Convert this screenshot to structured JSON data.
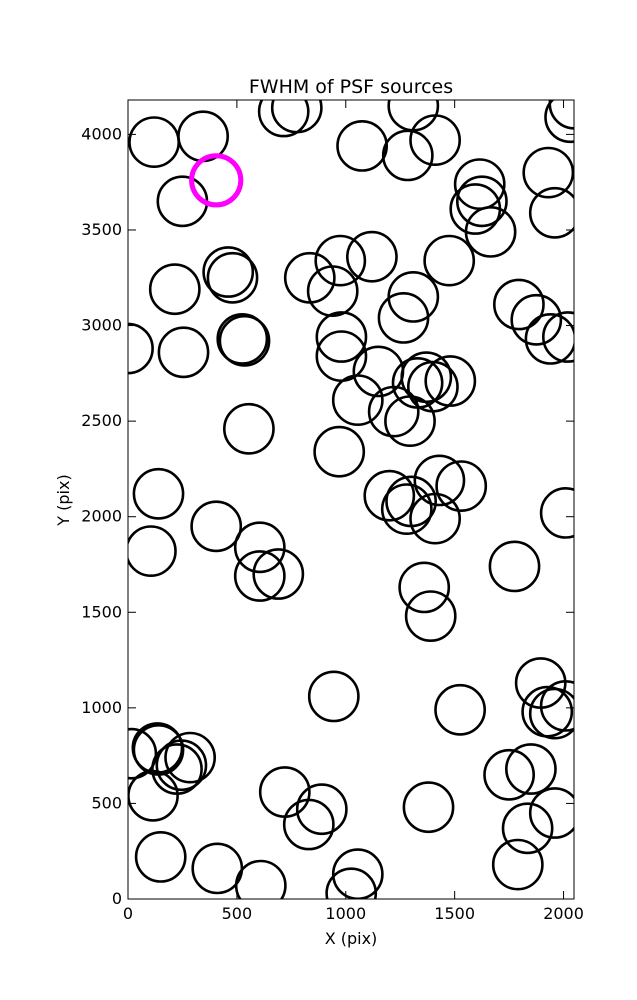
{
  "chart_data": {
    "type": "scatter",
    "title": "FWHM of PSF sources",
    "xlabel": "X (pix)",
    "ylabel": "Y (pix)",
    "xlim": [
      0,
      2048
    ],
    "ylim": [
      0,
      4180
    ],
    "grid": false,
    "marker": "open-circle",
    "circle_radius_data": 113,
    "marker_color": "#000000",
    "highlight_color": "#ff00ff",
    "x_ticks": [
      {
        "value": 0,
        "label": "0"
      },
      {
        "value": 500,
        "label": "500"
      },
      {
        "value": 1000,
        "label": "1000"
      },
      {
        "value": 1500,
        "label": "1500"
      },
      {
        "value": 2000,
        "label": "2000"
      }
    ],
    "y_ticks": [
      {
        "value": 0,
        "label": "0"
      },
      {
        "value": 500,
        "label": "500"
      },
      {
        "value": 1000,
        "label": "1000"
      },
      {
        "value": 1500,
        "label": "1500"
      },
      {
        "value": 2000,
        "label": "2000"
      },
      {
        "value": 2500,
        "label": "2500"
      },
      {
        "value": 3000,
        "label": "3000"
      },
      {
        "value": 3500,
        "label": "3500"
      },
      {
        "value": 4000,
        "label": "4000"
      }
    ],
    "series": [
      {
        "points": [
          [
            120,
            3960
          ],
          [
            345,
            3990
          ],
          [
            715,
            4120
          ],
          [
            775,
            4140
          ],
          [
            1075,
            3940
          ],
          [
            1285,
            3890
          ],
          [
            1310,
            4150
          ],
          [
            1410,
            3970
          ],
          [
            2030,
            4090
          ],
          [
            2050,
            4160
          ],
          [
            1930,
            3800
          ],
          [
            1960,
            3590
          ],
          [
            1615,
            3740
          ],
          [
            1625,
            3650
          ],
          [
            1595,
            3610
          ],
          [
            1665,
            3490
          ],
          [
            1475,
            3340
          ],
          [
            250,
            3650
          ],
          [
            460,
            3280
          ],
          [
            480,
            3250
          ],
          [
            215,
            3190
          ],
          [
            835,
            3250
          ],
          [
            975,
            3340
          ],
          [
            940,
            3180
          ],
          [
            1120,
            3360
          ],
          [
            1310,
            3150
          ],
          [
            1265,
            3040
          ],
          [
            1795,
            3110
          ],
          [
            1875,
            3030
          ],
          [
            1940,
            2930
          ],
          [
            2020,
            2940
          ],
          [
            0,
            2880
          ],
          [
            255,
            2860
          ],
          [
            525,
            2930
          ],
          [
            535,
            2920
          ],
          [
            980,
            2940
          ],
          [
            980,
            2840
          ],
          [
            1150,
            2760
          ],
          [
            1055,
            2610
          ],
          [
            1220,
            2550
          ],
          [
            1295,
            2500
          ],
          [
            1370,
            2730
          ],
          [
            1330,
            2700
          ],
          [
            1400,
            2680
          ],
          [
            1480,
            2710
          ],
          [
            555,
            2460
          ],
          [
            970,
            2340
          ],
          [
            140,
            2120
          ],
          [
            405,
            1950
          ],
          [
            105,
            1820
          ],
          [
            605,
            1840
          ],
          [
            605,
            1690
          ],
          [
            690,
            1700
          ],
          [
            1200,
            2110
          ],
          [
            1280,
            2040
          ],
          [
            1300,
            2080
          ],
          [
            1410,
            1990
          ],
          [
            1430,
            2190
          ],
          [
            1530,
            2160
          ],
          [
            2010,
            2020
          ],
          [
            1775,
            1740
          ],
          [
            1360,
            1630
          ],
          [
            1390,
            1480
          ],
          [
            945,
            1060
          ],
          [
            1525,
            990
          ],
          [
            1895,
            1130
          ],
          [
            1925,
            980
          ],
          [
            1960,
            970
          ],
          [
            2010,
            1010
          ],
          [
            15,
            760
          ],
          [
            135,
            790
          ],
          [
            140,
            780
          ],
          [
            285,
            740
          ],
          [
            245,
            700
          ],
          [
            225,
            680
          ],
          [
            115,
            540
          ],
          [
            1750,
            650
          ],
          [
            1850,
            680
          ],
          [
            720,
            560
          ],
          [
            890,
            470
          ],
          [
            830,
            390
          ],
          [
            1380,
            480
          ],
          [
            1835,
            370
          ],
          [
            1960,
            450
          ],
          [
            150,
            220
          ],
          [
            410,
            160
          ],
          [
            610,
            70
          ],
          [
            1055,
            130
          ],
          [
            1025,
            30
          ],
          [
            1790,
            180
          ]
        ]
      },
      {
        "highlight": true,
        "points": [
          [
            405,
            3760
          ]
        ]
      }
    ]
  }
}
